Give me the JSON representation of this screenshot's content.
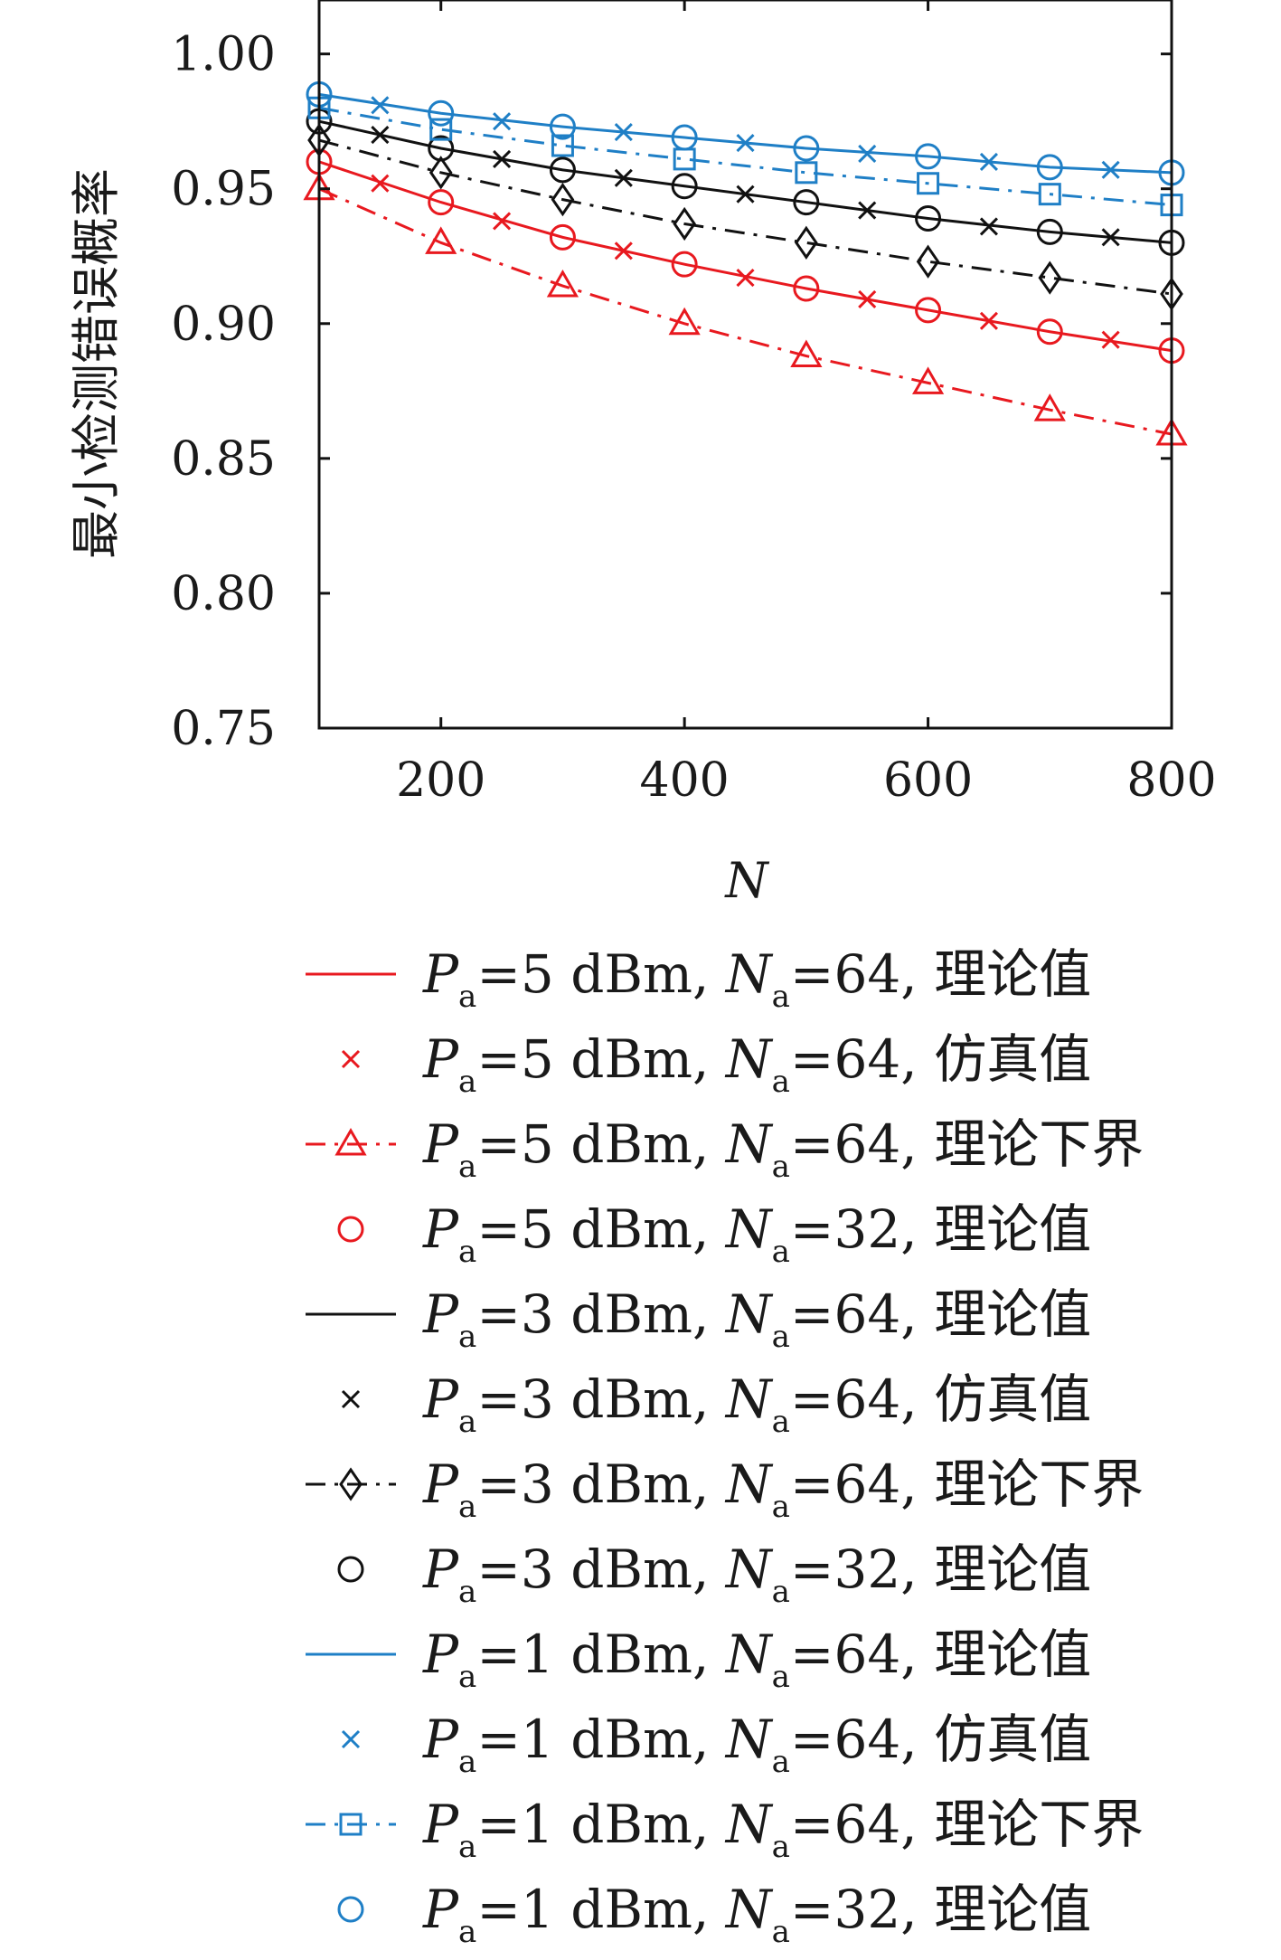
{
  "chart_data": {
    "type": "line",
    "xlabel": "N",
    "ylabel": "最小检测错误概率",
    "xlim": [
      100,
      800
    ],
    "ylim": [
      0.75,
      1.02
    ],
    "x_ticks": [
      200,
      400,
      600,
      800
    ],
    "y_ticks": [
      0.75,
      0.8,
      0.85,
      0.9,
      0.95,
      1.0
    ],
    "y_tick_labels": [
      "0.75",
      "0.80",
      "0.85",
      "0.90",
      "0.95",
      "1.00"
    ],
    "grid": false,
    "legend_position": "bottom",
    "colors": {
      "red": "#e8191f",
      "black": "#111111",
      "blue": "#1f7fc6"
    },
    "series": [
      {
        "label": {
          "p": "P",
          "psub": "a",
          "pval": "=5 dBm, ",
          "n": "N",
          "nsub": "a",
          "nval": "=64, ",
          "kind": "理论值"
        },
        "color": "red",
        "line": "solid",
        "marker": "none",
        "x": [
          100,
          200,
          300,
          400,
          500,
          600,
          700,
          800
        ],
        "y": [
          0.96,
          0.945,
          0.932,
          0.922,
          0.913,
          0.905,
          0.897,
          0.89
        ]
      },
      {
        "label": {
          "p": "P",
          "psub": "a",
          "pval": "=5 dBm, ",
          "n": "N",
          "nsub": "a",
          "nval": "=64, ",
          "kind": "仿真值"
        },
        "color": "red",
        "line": "none",
        "marker": "x",
        "x": [
          150,
          250,
          350,
          450,
          550,
          650,
          750
        ],
        "y": [
          0.952,
          0.938,
          0.927,
          0.917,
          0.909,
          0.901,
          0.894
        ]
      },
      {
        "label": {
          "p": "P",
          "psub": "a",
          "pval": "=5 dBm, ",
          "n": "N",
          "nsub": "a",
          "nval": "=64, ",
          "kind": "理论下界"
        },
        "color": "red",
        "line": "dashdot",
        "marker": "triangle",
        "x": [
          100,
          200,
          300,
          400,
          500,
          600,
          700,
          800
        ],
        "y": [
          0.95,
          0.93,
          0.914,
          0.9,
          0.888,
          0.878,
          0.868,
          0.859
        ]
      },
      {
        "label": {
          "p": "P",
          "psub": "a",
          "pval": "=5 dBm, ",
          "n": "N",
          "nsub": "a",
          "nval": "=32, ",
          "kind": "理论值"
        },
        "color": "red",
        "line": "none",
        "marker": "circle",
        "x": [
          100,
          200,
          300,
          400,
          500,
          600,
          700,
          800
        ],
        "y": [
          0.96,
          0.945,
          0.932,
          0.922,
          0.913,
          0.905,
          0.897,
          0.89
        ]
      },
      {
        "label": {
          "p": "P",
          "psub": "a",
          "pval": "=3 dBm, ",
          "n": "N",
          "nsub": "a",
          "nval": "=64, ",
          "kind": "理论值"
        },
        "color": "black",
        "line": "solid",
        "marker": "none",
        "x": [
          100,
          200,
          300,
          400,
          500,
          600,
          700,
          800
        ],
        "y": [
          0.975,
          0.965,
          0.957,
          0.951,
          0.945,
          0.939,
          0.934,
          0.93
        ]
      },
      {
        "label": {
          "p": "P",
          "psub": "a",
          "pval": "=3 dBm, ",
          "n": "N",
          "nsub": "a",
          "nval": "=64, ",
          "kind": "仿真值"
        },
        "color": "black",
        "line": "none",
        "marker": "x",
        "x": [
          150,
          250,
          350,
          450,
          550,
          650,
          750
        ],
        "y": [
          0.97,
          0.961,
          0.954,
          0.948,
          0.942,
          0.936,
          0.932
        ]
      },
      {
        "label": {
          "p": "P",
          "psub": "a",
          "pval": "=3 dBm, ",
          "n": "N",
          "nsub": "a",
          "nval": "=64, ",
          "kind": "理论下界"
        },
        "color": "black",
        "line": "dashdot",
        "marker": "diamond",
        "x": [
          100,
          200,
          300,
          400,
          500,
          600,
          700,
          800
        ],
        "y": [
          0.968,
          0.956,
          0.946,
          0.937,
          0.93,
          0.923,
          0.917,
          0.911
        ]
      },
      {
        "label": {
          "p": "P",
          "psub": "a",
          "pval": "=3 dBm, ",
          "n": "N",
          "nsub": "a",
          "nval": "=32, ",
          "kind": "理论值"
        },
        "color": "black",
        "line": "none",
        "marker": "circle",
        "x": [
          100,
          200,
          300,
          400,
          500,
          600,
          700,
          800
        ],
        "y": [
          0.975,
          0.965,
          0.957,
          0.951,
          0.945,
          0.939,
          0.934,
          0.93
        ]
      },
      {
        "label": {
          "p": "P",
          "psub": "a",
          "pval": "=1 dBm, ",
          "n": "N",
          "nsub": "a",
          "nval": "=64, ",
          "kind": "理论值"
        },
        "color": "blue",
        "line": "solid",
        "marker": "none",
        "x": [
          100,
          200,
          300,
          400,
          500,
          600,
          700,
          800
        ],
        "y": [
          0.985,
          0.978,
          0.973,
          0.969,
          0.965,
          0.962,
          0.958,
          0.956
        ]
      },
      {
        "label": {
          "p": "P",
          "psub": "a",
          "pval": "=1 dBm, ",
          "n": "N",
          "nsub": "a",
          "nval": "=64, ",
          "kind": "仿真值"
        },
        "color": "blue",
        "line": "none",
        "marker": "x",
        "x": [
          150,
          250,
          350,
          450,
          550,
          650,
          750
        ],
        "y": [
          0.981,
          0.975,
          0.971,
          0.967,
          0.963,
          0.96,
          0.957
        ]
      },
      {
        "label": {
          "p": "P",
          "psub": "a",
          "pval": "=1 dBm, ",
          "n": "N",
          "nsub": "a",
          "nval": "=64, ",
          "kind": "理论下界"
        },
        "color": "blue",
        "line": "dashdot",
        "marker": "square",
        "x": [
          100,
          200,
          300,
          400,
          500,
          600,
          700,
          800
        ],
        "y": [
          0.98,
          0.972,
          0.966,
          0.961,
          0.956,
          0.952,
          0.948,
          0.944
        ]
      },
      {
        "label": {
          "p": "P",
          "psub": "a",
          "pval": "=1 dBm, ",
          "n": "N",
          "nsub": "a",
          "nval": "=32, ",
          "kind": "理论值"
        },
        "color": "blue",
        "line": "none",
        "marker": "circle",
        "x": [
          100,
          200,
          300,
          400,
          500,
          600,
          700,
          800
        ],
        "y": [
          0.985,
          0.978,
          0.973,
          0.969,
          0.965,
          0.962,
          0.958,
          0.956
        ]
      }
    ]
  }
}
